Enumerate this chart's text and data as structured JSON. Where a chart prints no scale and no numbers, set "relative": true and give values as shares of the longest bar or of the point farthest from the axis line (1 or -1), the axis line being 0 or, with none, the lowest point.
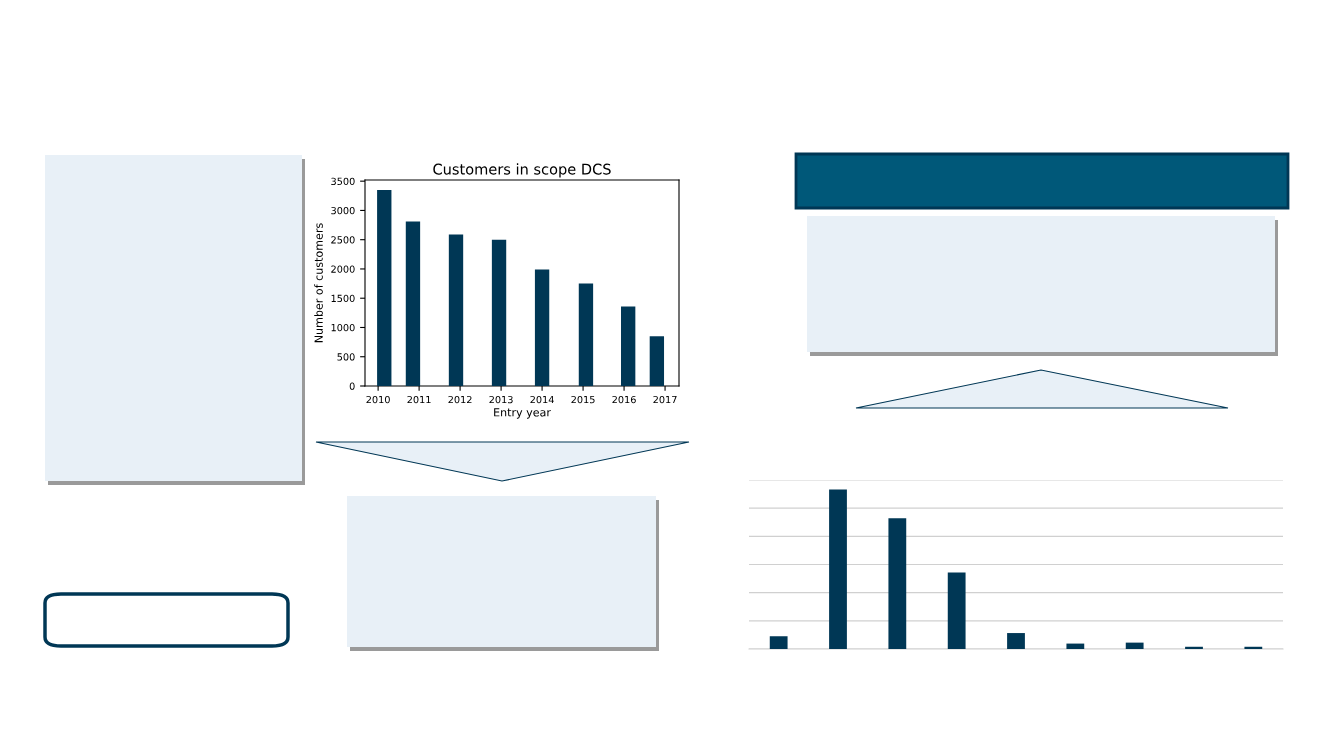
{
  "chart_data": [
    {
      "type": "bar",
      "title": "Customers in scope DCS",
      "xlabel": "Entry year",
      "ylabel": "Number of customers",
      "x": [
        2010.15,
        2010.85,
        2011.9,
        2012.95,
        2014.0,
        2015.07,
        2016.1,
        2016.8
      ],
      "values": [
        3350,
        2810,
        2590,
        2500,
        1990,
        1750,
        1360,
        850
      ],
      "color": "#003755",
      "xlim": [
        2009.68,
        2017.34
      ],
      "xticks": [
        2010,
        2011,
        2012,
        2013,
        2014,
        2015,
        2016,
        2017
      ],
      "ylim": [
        0,
        3520
      ],
      "yticks": [
        0,
        500,
        1000,
        1500,
        2000,
        2500,
        3000,
        3500
      ],
      "grid": false
    },
    {
      "type": "bar",
      "relative": true,
      "categories": [
        null,
        null,
        null,
        null,
        null,
        null,
        null,
        null,
        null
      ],
      "values": [
        0.08,
        1,
        0.82,
        0.48,
        0.1,
        0.034,
        0.04,
        0.014,
        0.014
      ],
      "color": "#003755",
      "grid": "y",
      "tick_labels": false
    }
  ]
}
